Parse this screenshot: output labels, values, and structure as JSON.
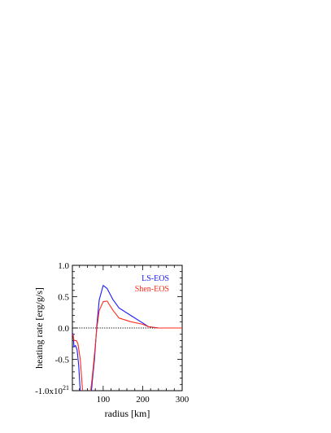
{
  "chart_data": {
    "type": "line",
    "xlabel": "radius [km]",
    "ylabel": "heating rate [erg/g/s]",
    "xlim": [
      22,
      300
    ],
    "ylim": [
      -1.0,
      1.0
    ],
    "xticks": [
      100,
      200,
      300
    ],
    "xtick_labels": [
      "100",
      "200",
      "300"
    ],
    "yticks": [
      -1.0,
      -0.5,
      0.0,
      0.5,
      1.0
    ],
    "ytick_labels": [
      "-1.0x10",
      "-0.5",
      "0.0",
      "0.5",
      "1.0"
    ],
    "ytick_exponent": "21",
    "zero_line": true,
    "legend_position": "top-right",
    "series": [
      {
        "name": "LS-EOS",
        "color": "#1a1aff",
        "points": [
          [
            22,
            -0.08
          ],
          [
            24,
            -0.1
          ],
          [
            26,
            -0.3
          ],
          [
            30,
            -0.28
          ],
          [
            34,
            -0.35
          ],
          [
            38,
            -0.6
          ],
          [
            42,
            -1.02
          ],
          [
            70,
            -1.02
          ],
          [
            74,
            -0.75
          ],
          [
            78,
            -0.5
          ],
          [
            84,
            0.05
          ],
          [
            90,
            0.45
          ],
          [
            100,
            0.68
          ],
          [
            110,
            0.63
          ],
          [
            125,
            0.45
          ],
          [
            140,
            0.32
          ],
          [
            170,
            0.2
          ],
          [
            200,
            0.08
          ],
          [
            215,
            0.02
          ],
          [
            240,
            0.0
          ],
          [
            300,
            0.0
          ]
        ]
      },
      {
        "name": "Shen-EOS",
        "color": "#ff2a1a",
        "points": [
          [
            22,
            -0.1
          ],
          [
            24,
            -0.12
          ],
          [
            26,
            -0.2
          ],
          [
            32,
            -0.2
          ],
          [
            36,
            -0.25
          ],
          [
            42,
            -0.5
          ],
          [
            48,
            -1.02
          ],
          [
            68,
            -1.02
          ],
          [
            72,
            -0.8
          ],
          [
            76,
            -0.55
          ],
          [
            84,
            0.0
          ],
          [
            90,
            0.28
          ],
          [
            100,
            0.42
          ],
          [
            110,
            0.43
          ],
          [
            125,
            0.28
          ],
          [
            140,
            0.16
          ],
          [
            170,
            0.1
          ],
          [
            200,
            0.06
          ],
          [
            215,
            0.02
          ],
          [
            240,
            0.0
          ],
          [
            300,
            0.0
          ]
        ]
      }
    ]
  }
}
